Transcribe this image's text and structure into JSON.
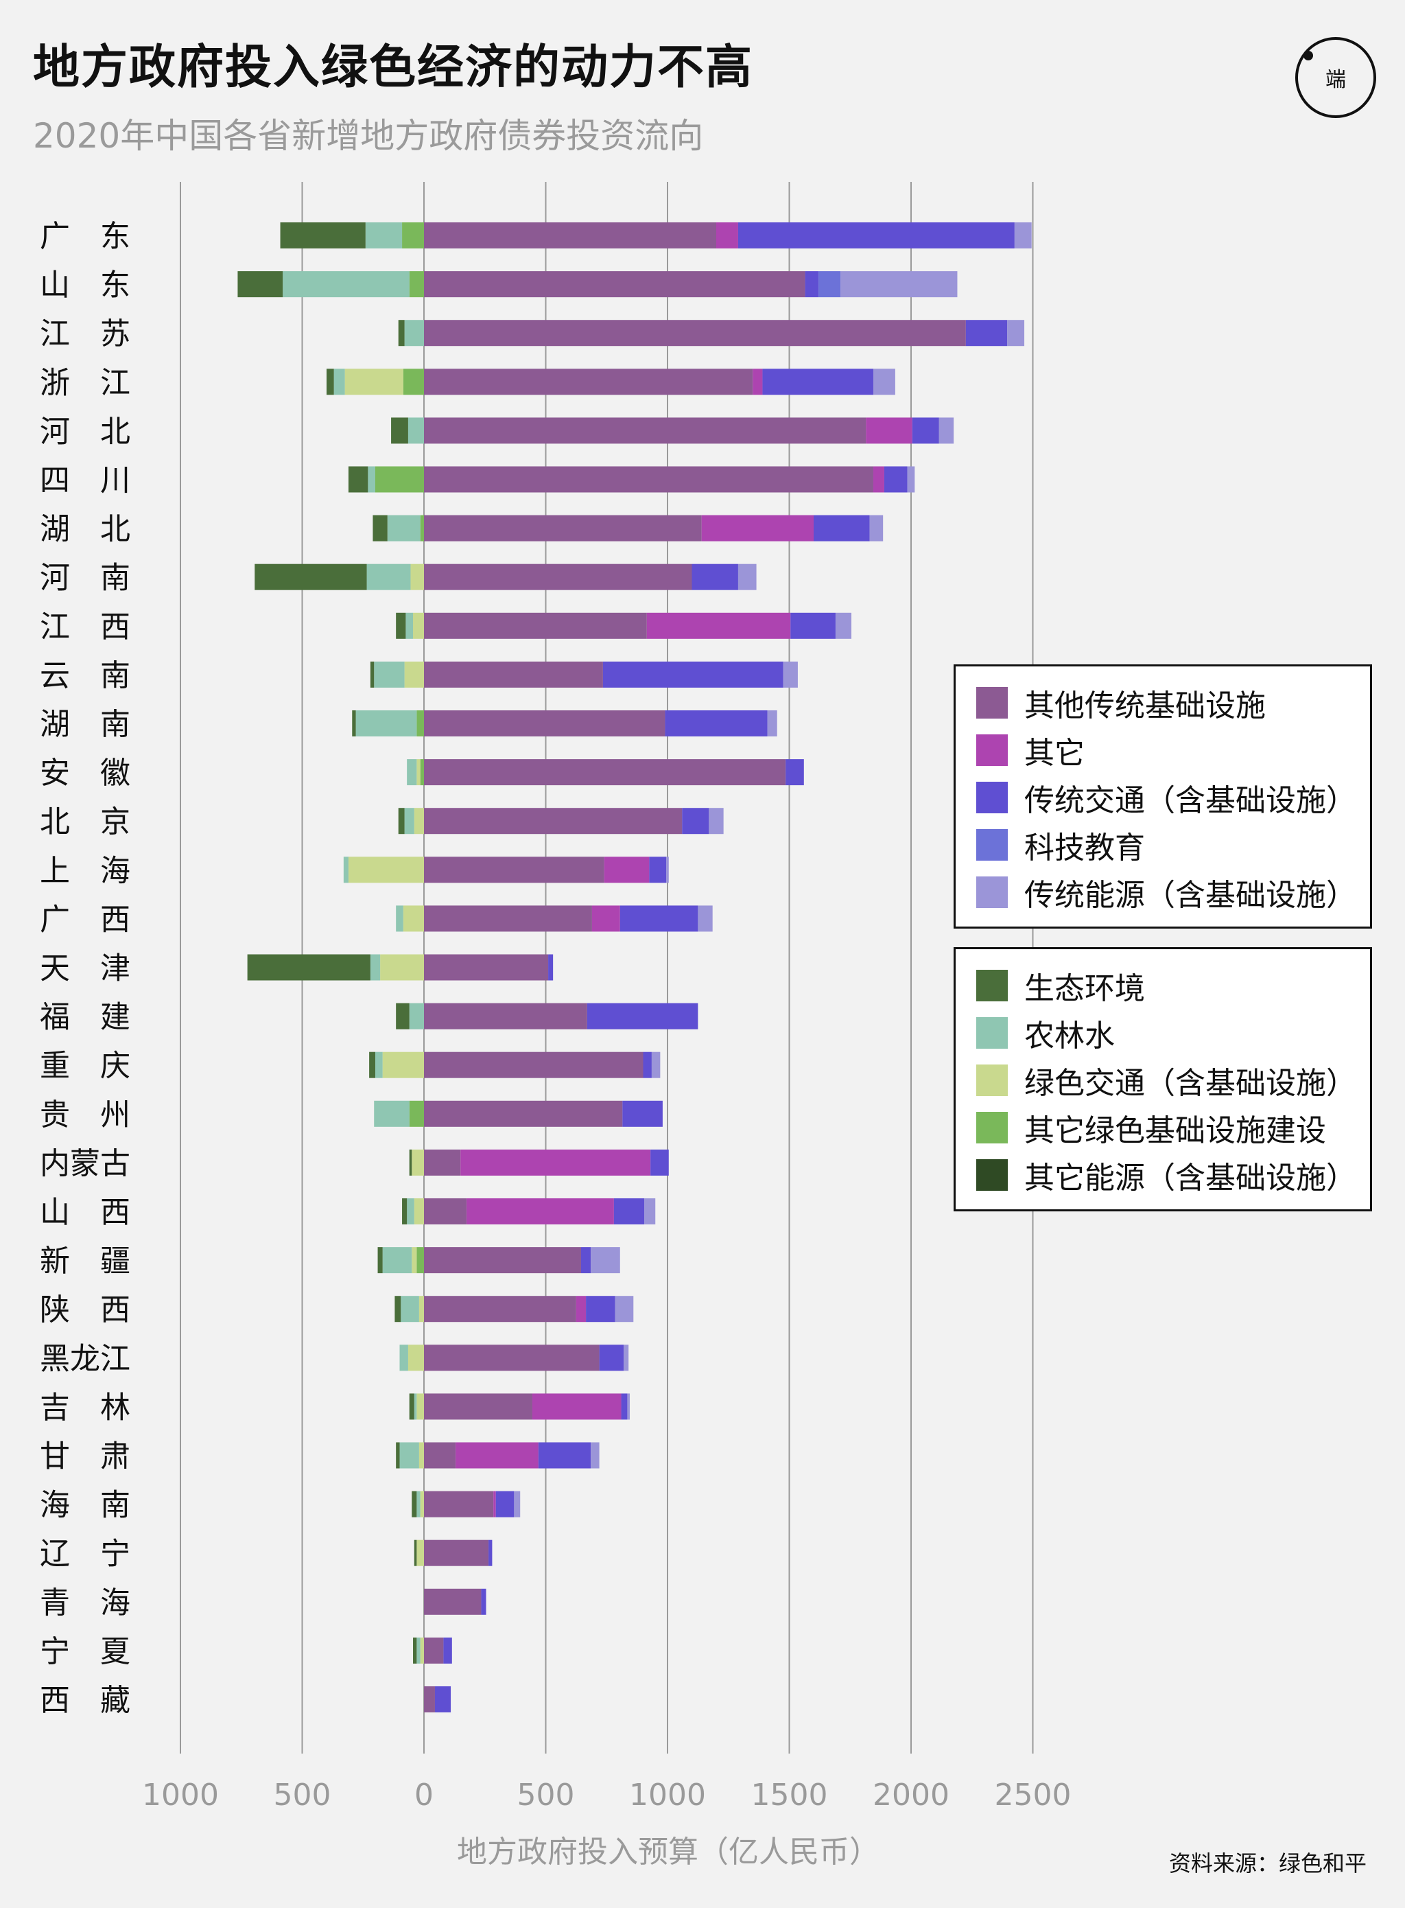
{
  "header": {
    "title": "地方政府投入绿色经济的动力不高",
    "subtitle": "2020年中国各省新增地方政府债券投资流向",
    "logo_text": "端"
  },
  "source": "资料来源：绿色和平",
  "colors": {
    "traditional_other": "#8c5a93",
    "other": "#ad44b0",
    "traditional_transport": "#5f4fd2",
    "sci_tech_edu": "#6c72d8",
    "traditional_energy": "#9b95d8",
    "ecology": "#4a6e3a",
    "agri_forest_water": "#8fc6b2",
    "green_transport": "#c9d98e",
    "other_green_infra": "#7ab85a",
    "other_energy": "#2f4a24"
  },
  "legend_traditional": [
    {
      "key": "traditional_other",
      "label": "其他传统基础设施"
    },
    {
      "key": "other",
      "label": "其它"
    },
    {
      "key": "traditional_transport",
      "label": "传统交通（含基础设施）"
    },
    {
      "key": "sci_tech_edu",
      "label": "科技教育"
    },
    {
      "key": "traditional_energy",
      "label": "传统能源（含基础设施）"
    }
  ],
  "legend_green": [
    {
      "key": "ecology",
      "label": "生态环境"
    },
    {
      "key": "agri_forest_water",
      "label": "农林水"
    },
    {
      "key": "green_transport",
      "label": "绿色交通（含基础设施）"
    },
    {
      "key": "other_green_infra",
      "label": "其它绿色基础设施建设"
    },
    {
      "key": "other_energy",
      "label": "其它能源（含基础设施）"
    }
  ],
  "chart_data": {
    "type": "bar",
    "orientation": "horizontal-diverging",
    "xlabel": "地方政府投入预算（亿人民币）",
    "xlim": [
      -1000,
      2500
    ],
    "xticks": [
      {
        "value": -1000,
        "label": "1000"
      },
      {
        "value": -500,
        "label": "500"
      },
      {
        "value": 0,
        "label": "0"
      },
      {
        "value": 500,
        "label": "500"
      },
      {
        "value": 1000,
        "label": "1000"
      },
      {
        "value": 1500,
        "label": "1500"
      },
      {
        "value": 2000,
        "label": "2000"
      },
      {
        "value": 2500,
        "label": "2500"
      }
    ],
    "grid": true,
    "categories": [
      "广　东",
      "山　东",
      "江　苏",
      "浙　江",
      "河　北",
      "四　川",
      "湖　北",
      "河　南",
      "江　西",
      "云　南",
      "湖　南",
      "安　徽",
      "北　京",
      "上　海",
      "广　西",
      "天　津",
      "福　建",
      "重　庆",
      "贵　州",
      "内蒙古",
      "山　西",
      "新　疆",
      "陕　西",
      "黑龙江",
      "吉　林",
      "甘　肃",
      "海　南",
      "辽　宁",
      "青　海",
      "宁　夏",
      "西　藏"
    ],
    "positive_series": [
      {
        "key": "traditional_other",
        "values": [
          1200,
          1565,
          2225,
          1350,
          1815,
          1845,
          1140,
          1100,
          915,
          735,
          990,
          1485,
          1060,
          740,
          690,
          510,
          670,
          900,
          815,
          150,
          175,
          645,
          625,
          720,
          445,
          130,
          285,
          265,
          235,
          80,
          45
        ]
      },
      {
        "key": "other",
        "values": [
          90,
          0,
          0,
          40,
          190,
          45,
          460,
          0,
          590,
          0,
          0,
          0,
          0,
          185,
          115,
          0,
          0,
          0,
          0,
          780,
          605,
          0,
          40,
          0,
          365,
          340,
          10,
          0,
          0,
          0,
          0
        ]
      },
      {
        "key": "traditional_transport",
        "values": [
          1135,
          55,
          170,
          455,
          110,
          95,
          230,
          190,
          185,
          740,
          420,
          75,
          110,
          70,
          320,
          20,
          455,
          35,
          165,
          75,
          125,
          40,
          120,
          100,
          25,
          215,
          75,
          15,
          20,
          35,
          65
        ]
      },
      {
        "key": "sci_tech_edu",
        "values": [
          0,
          90,
          0,
          0,
          0,
          0,
          0,
          0,
          0,
          0,
          0,
          0,
          0,
          0,
          0,
          0,
          0,
          0,
          0,
          0,
          0,
          0,
          0,
          0,
          0,
          0,
          0,
          0,
          0,
          0,
          0
        ]
      },
      {
        "key": "traditional_energy",
        "values": [
          70,
          480,
          70,
          90,
          60,
          30,
          55,
          75,
          65,
          60,
          40,
          0,
          60,
          10,
          60,
          0,
          0,
          35,
          0,
          0,
          45,
          120,
          75,
          20,
          10,
          35,
          25,
          0,
          0,
          0,
          0
        ]
      }
    ],
    "negative_series": [
      {
        "key": "other_green_infra",
        "values": [
          90,
          60,
          0,
          85,
          0,
          200,
          15,
          0,
          0,
          0,
          30,
          15,
          0,
          0,
          0,
          0,
          0,
          0,
          60,
          0,
          0,
          30,
          0,
          0,
          0,
          0,
          0,
          0,
          0,
          0,
          0
        ]
      },
      {
        "key": "green_transport",
        "values": [
          0,
          0,
          0,
          240,
          0,
          0,
          0,
          55,
          45,
          80,
          0,
          15,
          40,
          310,
          85,
          180,
          0,
          170,
          0,
          50,
          40,
          20,
          20,
          65,
          30,
          20,
          15,
          30,
          0,
          15,
          0
        ]
      },
      {
        "key": "agri_forest_water",
        "values": [
          150,
          520,
          80,
          45,
          65,
          30,
          135,
          180,
          30,
          125,
          250,
          40,
          40,
          20,
          30,
          40,
          60,
          30,
          145,
          0,
          30,
          120,
          75,
          35,
          10,
          80,
          15,
          0,
          0,
          15,
          0
        ]
      },
      {
        "key": "ecology",
        "values": [
          350,
          185,
          25,
          30,
          70,
          80,
          60,
          460,
          40,
          15,
          15,
          0,
          25,
          0,
          0,
          505,
          55,
          25,
          0,
          10,
          20,
          20,
          25,
          0,
          20,
          15,
          20,
          10,
          0,
          15,
          0
        ]
      }
    ]
  }
}
